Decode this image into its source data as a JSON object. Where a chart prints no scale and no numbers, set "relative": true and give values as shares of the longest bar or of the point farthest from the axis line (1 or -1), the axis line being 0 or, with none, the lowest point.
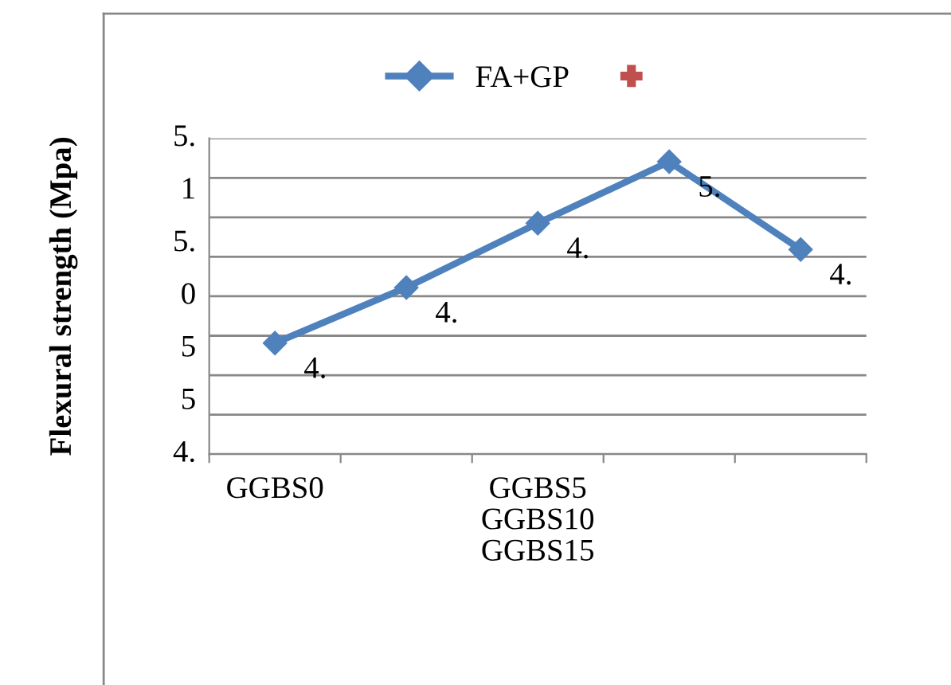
{
  "chart_data": {
    "type": "line",
    "relative": true,
    "ylabel": "Flexural strength (Mpa)",
    "categories": [
      "GGBS0",
      null,
      "GGBS5\nGGBS10\nGGBS15",
      null,
      null
    ],
    "series": [
      {
        "name": "FA+GP",
        "color": "#4f81bd",
        "marker": "diamond",
        "values": [
          0.38,
          0.57,
          0.79,
          1.0,
          0.7
        ]
      },
      {
        "color": "#c0504d",
        "marker": "cross",
        "values": [
          null,
          null,
          null,
          null,
          null
        ]
      }
    ],
    "annotations": [
      "5.",
      "1",
      "5.",
      "0",
      "5",
      "5",
      "4.",
      "4.",
      "4.",
      "4.",
      "5.",
      "4."
    ],
    "grid": "y",
    "legend": "top"
  }
}
